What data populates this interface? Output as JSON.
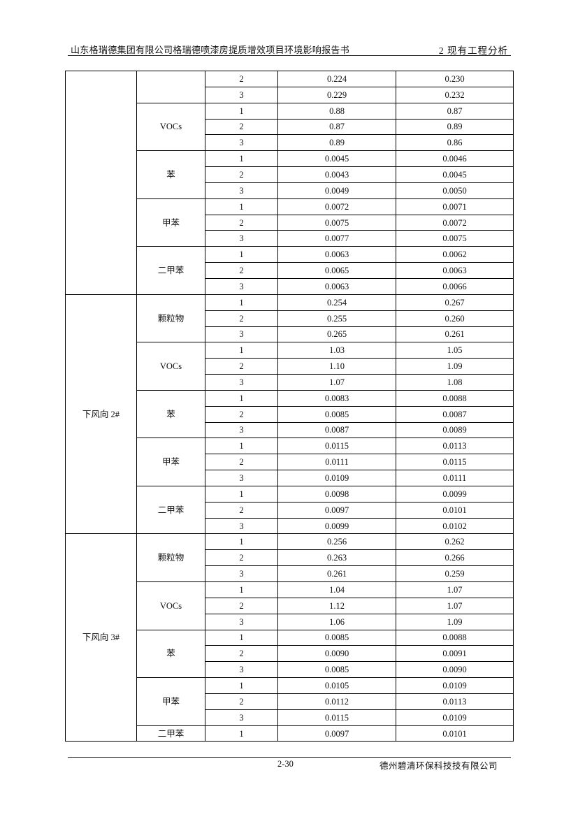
{
  "header": {
    "title": "山东格瑞德集团有限公司格瑞德喷漆房提质增效项目环境影响报告书",
    "chapter": "2 现有工程分析"
  },
  "footer": {
    "page": "2-30",
    "company": "德州碧清环保科技技有限公司"
  },
  "table": {
    "groups": [
      {
        "location": "",
        "pollutants": [
          {
            "name": "",
            "rows": [
              [
                "2",
                "0.224",
                "0.230"
              ],
              [
                "3",
                "0.229",
                "0.232"
              ]
            ]
          },
          {
            "name": "VOCs",
            "rows": [
              [
                "1",
                "0.88",
                "0.87"
              ],
              [
                "2",
                "0.87",
                "0.89"
              ],
              [
                "3",
                "0.89",
                "0.86"
              ]
            ]
          },
          {
            "name": "苯",
            "rows": [
              [
                "1",
                "0.0045",
                "0.0046"
              ],
              [
                "2",
                "0.0043",
                "0.0045"
              ],
              [
                "3",
                "0.0049",
                "0.0050"
              ]
            ]
          },
          {
            "name": "甲苯",
            "rows": [
              [
                "1",
                "0.0072",
                "0.0071"
              ],
              [
                "2",
                "0.0075",
                "0.0072"
              ],
              [
                "3",
                "0.0077",
                "0.0075"
              ]
            ]
          },
          {
            "name": "二甲苯",
            "rows": [
              [
                "1",
                "0.0063",
                "0.0062"
              ],
              [
                "2",
                "0.0065",
                "0.0063"
              ],
              [
                "3",
                "0.0063",
                "0.0066"
              ]
            ]
          }
        ]
      },
      {
        "location": "下风向 2#",
        "pollutants": [
          {
            "name": "颗粒物",
            "rows": [
              [
                "1",
                "0.254",
                "0.267"
              ],
              [
                "2",
                "0.255",
                "0.260"
              ],
              [
                "3",
                "0.265",
                "0.261"
              ]
            ]
          },
          {
            "name": "VOCs",
            "rows": [
              [
                "1",
                "1.03",
                "1.05"
              ],
              [
                "2",
                "1.10",
                "1.09"
              ],
              [
                "3",
                "1.07",
                "1.08"
              ]
            ]
          },
          {
            "name": "苯",
            "rows": [
              [
                "1",
                "0.0083",
                "0.0088"
              ],
              [
                "2",
                "0.0085",
                "0.0087"
              ],
              [
                "3",
                "0.0087",
                "0.0089"
              ]
            ]
          },
          {
            "name": "甲苯",
            "rows": [
              [
                "1",
                "0.0115",
                "0.0113"
              ],
              [
                "2",
                "0.0111",
                "0.0115"
              ],
              [
                "3",
                "0.0109",
                "0.0111"
              ]
            ]
          },
          {
            "name": "二甲苯",
            "rows": [
              [
                "1",
                "0.0098",
                "0.0099"
              ],
              [
                "2",
                "0.0097",
                "0.0101"
              ],
              [
                "3",
                "0.0099",
                "0.0102"
              ]
            ]
          }
        ]
      },
      {
        "location": "下风向 3#",
        "pollutants": [
          {
            "name": "颗粒物",
            "rows": [
              [
                "1",
                "0.256",
                "0.262"
              ],
              [
                "2",
                "0.263",
                "0.266"
              ],
              [
                "3",
                "0.261",
                "0.259"
              ]
            ]
          },
          {
            "name": "VOCs",
            "rows": [
              [
                "1",
                "1.04",
                "1.07"
              ],
              [
                "2",
                "1.12",
                "1.07"
              ],
              [
                "3",
                "1.06",
                "1.09"
              ]
            ]
          },
          {
            "name": "苯",
            "rows": [
              [
                "1",
                "0.0085",
                "0.0088"
              ],
              [
                "2",
                "0.0090",
                "0.0091"
              ],
              [
                "3",
                "0.0085",
                "0.0090"
              ]
            ]
          },
          {
            "name": "甲苯",
            "rows": [
              [
                "1",
                "0.0105",
                "0.0109"
              ],
              [
                "2",
                "0.0112",
                "0.0113"
              ],
              [
                "3",
                "0.0115",
                "0.0109"
              ]
            ]
          },
          {
            "name": "二甲苯",
            "rows": [
              [
                "1",
                "0.0097",
                "0.0101"
              ]
            ]
          }
        ]
      }
    ]
  }
}
